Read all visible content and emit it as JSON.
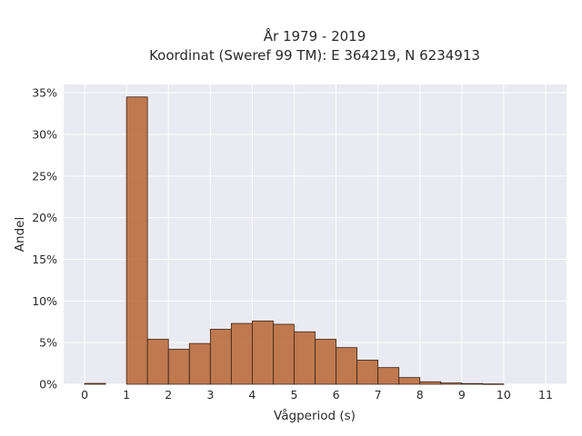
{
  "chart_data": {
    "type": "bar",
    "title": "År 1979 - 2019",
    "subtitle": "Koordinat (Sweref 99 TM): E 364219, N 6234913",
    "xlabel": "Vågperiod (s)",
    "ylabel": "Andel",
    "xlim": [
      -0.5,
      11.5
    ],
    "ylim": [
      0,
      0.36
    ],
    "x_ticks": [
      0,
      1,
      2,
      3,
      4,
      5,
      6,
      7,
      8,
      9,
      10,
      11
    ],
    "y_ticks": [
      0,
      0.05,
      0.1,
      0.15,
      0.2,
      0.25,
      0.3,
      0.35
    ],
    "y_tick_labels": [
      "0%",
      "5%",
      "10%",
      "15%",
      "20%",
      "25%",
      "30%",
      "35%"
    ],
    "bin_width": 0.5,
    "bins": [
      {
        "x0": 0.0,
        "value": 0.001
      },
      {
        "x0": 1.0,
        "value": 0.345
      },
      {
        "x0": 1.5,
        "value": 0.054
      },
      {
        "x0": 2.0,
        "value": 0.042
      },
      {
        "x0": 2.5,
        "value": 0.049
      },
      {
        "x0": 3.0,
        "value": 0.066
      },
      {
        "x0": 3.5,
        "value": 0.073
      },
      {
        "x0": 4.0,
        "value": 0.076
      },
      {
        "x0": 4.5,
        "value": 0.072
      },
      {
        "x0": 5.0,
        "value": 0.063
      },
      {
        "x0": 5.5,
        "value": 0.054
      },
      {
        "x0": 6.0,
        "value": 0.044
      },
      {
        "x0": 6.5,
        "value": 0.029
      },
      {
        "x0": 7.0,
        "value": 0.02
      },
      {
        "x0": 7.5,
        "value": 0.008
      },
      {
        "x0": 8.0,
        "value": 0.003
      },
      {
        "x0": 8.5,
        "value": 0.0015
      },
      {
        "x0": 9.0,
        "value": 0.0008
      },
      {
        "x0": 9.5,
        "value": 0.0004
      }
    ],
    "grid": true,
    "colors": {
      "bar": "#b5602b",
      "plot_background": "#eaeaf2",
      "grid": "#ffffff"
    }
  }
}
